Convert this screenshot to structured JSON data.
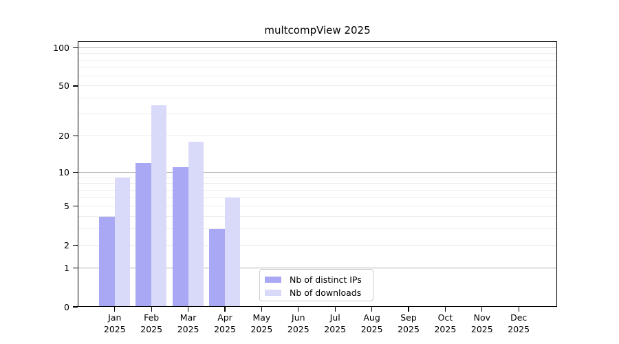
{
  "chart_data": {
    "type": "bar",
    "title": "multcompView 2025",
    "categories": [
      "Jan",
      "Feb",
      "Mar",
      "Apr",
      "May",
      "Jun",
      "Jul",
      "Aug",
      "Sep",
      "Oct",
      "Nov",
      "Dec"
    ],
    "x_tick_year_line": "2025",
    "series": [
      {
        "name": "Nb of distinct IPs",
        "color": "#a8a8f5",
        "values": [
          4,
          12,
          11,
          3,
          null,
          null,
          null,
          null,
          null,
          null,
          null,
          null
        ]
      },
      {
        "name": "Nb of downloads",
        "color": "#d9d9f9",
        "values": [
          9,
          35,
          18,
          6,
          null,
          null,
          null,
          null,
          null,
          null,
          null,
          null
        ]
      }
    ],
    "y_axis": {
      "scale": "log10(value+1)",
      "tick_labels": [
        "0",
        "1",
        "2",
        "5",
        "10",
        "20",
        "50",
        "100"
      ],
      "tick_values": [
        0,
        1,
        2,
        5,
        10,
        20,
        50,
        100
      ],
      "major_gridlines": [
        1,
        10,
        100
      ],
      "minor_gridlines": [
        2,
        3,
        4,
        5,
        6,
        7,
        8,
        9,
        20,
        30,
        40,
        50,
        60,
        70,
        80,
        90
      ],
      "ylim": [
        0,
        110
      ]
    },
    "legend": {
      "position": "lower center",
      "entries": [
        "Nb of distinct IPs",
        "Nb of downloads"
      ]
    },
    "colors": {
      "bar_distinct_ips": "#a8a8f5",
      "bar_downloads": "#d9d9f9",
      "major_gridline": "#b0b0b0",
      "minor_gridline": "#ececec",
      "axis_frame": "#000000",
      "legend_border": "#cccccc",
      "background": "#ffffff",
      "text": "#000000"
    },
    "grid": "on",
    "xlabel": "",
    "ylabel": ""
  }
}
